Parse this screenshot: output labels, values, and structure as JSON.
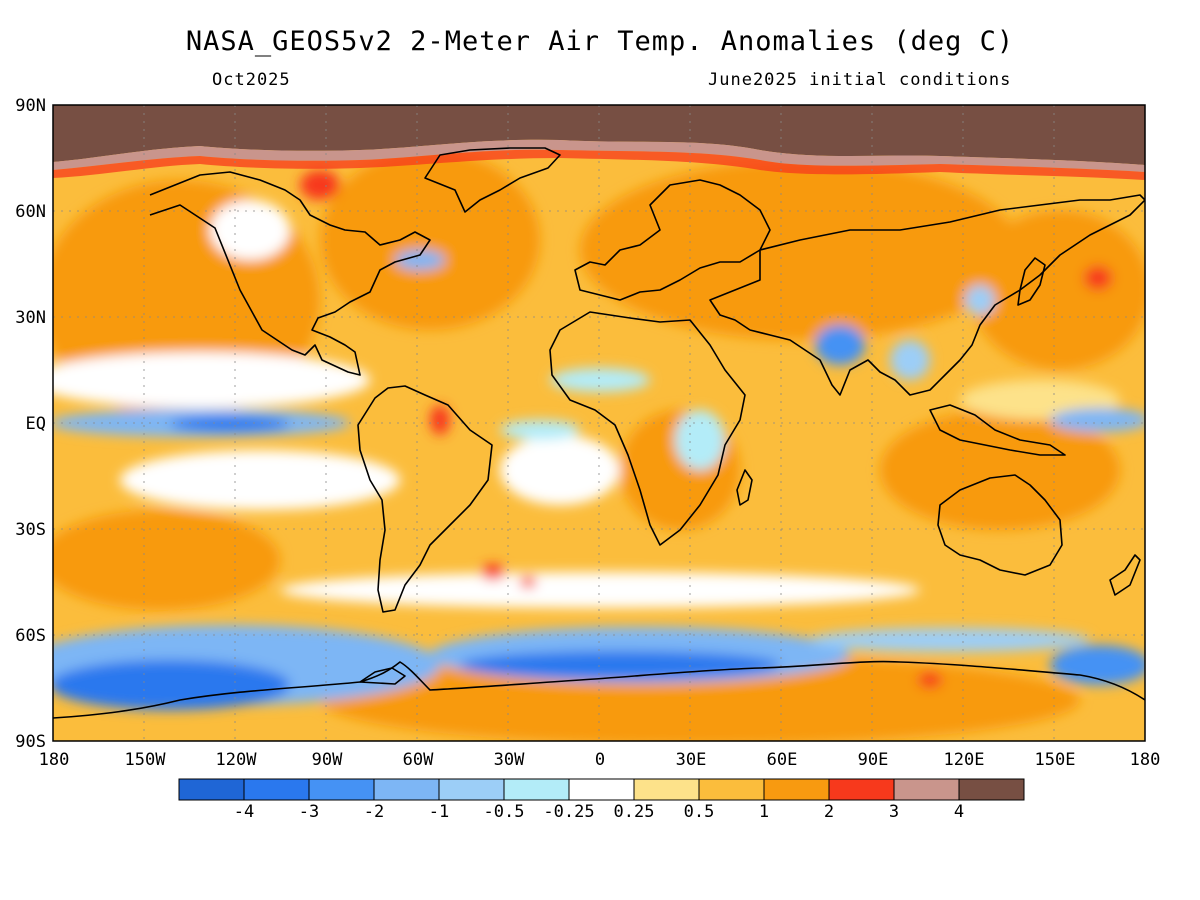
{
  "title": "NASA_GEOS5v2 2-Meter Air Temp. Anomalies (deg C)",
  "subtitle_left": "Oct2025",
  "subtitle_right": "June2025 initial conditions",
  "y_ticks": [
    "90N",
    "60N",
    "30N",
    "EQ",
    "30S",
    "60S",
    "90S"
  ],
  "x_ticks": [
    "180",
    "150W",
    "120W",
    "90W",
    "60W",
    "30W",
    "0",
    "30E",
    "60E",
    "90E",
    "120E",
    "150E",
    "180"
  ],
  "colorbar": {
    "labels": [
      "-4",
      "-3",
      "-2",
      "-1",
      "-0.5",
      "-0.25",
      "0.25",
      "0.5",
      "1",
      "2",
      "3",
      "4"
    ],
    "colors": [
      "#1f66d6",
      "#2a78ee",
      "#4592f4",
      "#7db6f5",
      "#9ccef7",
      "#b3ecf8",
      "#ffffff",
      "#fde28a",
      "#fbbd3c",
      "#f89a10",
      "#f7391c",
      "#c9958c",
      "#774f43"
    ]
  },
  "palette": {
    "land_outline": "#000000",
    "grid": "#888888"
  }
}
